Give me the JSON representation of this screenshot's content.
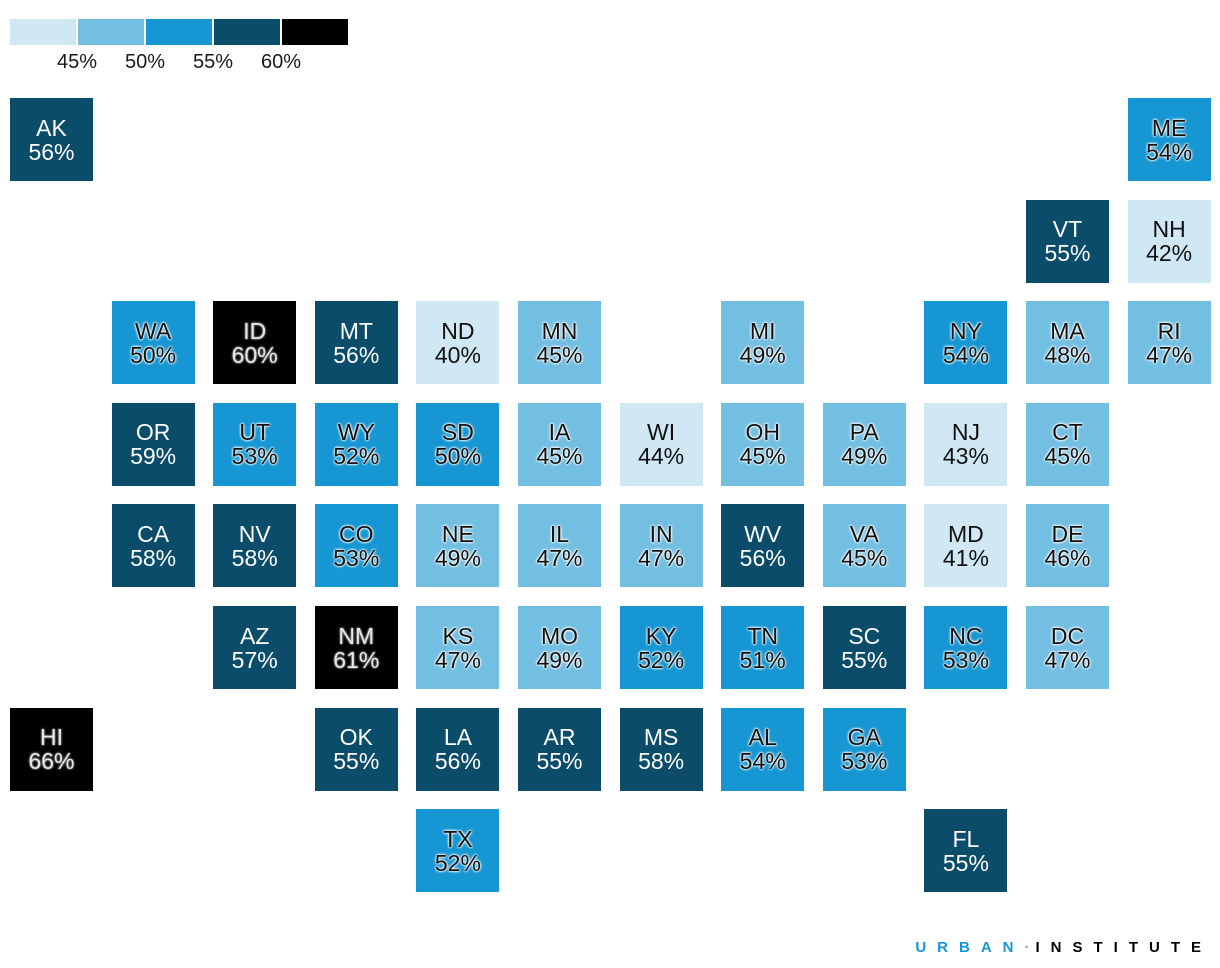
{
  "legend": {
    "colors": [
      "#cfe8f3",
      "#73bfe2",
      "#1696d2",
      "#0a4c6a",
      "#000000"
    ],
    "ticks": [
      "45%",
      "50%",
      "55%",
      "60%"
    ]
  },
  "states": [
    {
      "abbr": "AK",
      "value": "56%",
      "col": 0,
      "row": 0,
      "level": 3
    },
    {
      "abbr": "ME",
      "value": "54%",
      "col": 11,
      "row": 0,
      "level": 2
    },
    {
      "abbr": "VT",
      "value": "55%",
      "col": 10,
      "row": 1,
      "level": 3
    },
    {
      "abbr": "NH",
      "value": "42%",
      "col": 11,
      "row": 1,
      "level": 0
    },
    {
      "abbr": "WA",
      "value": "50%",
      "col": 1,
      "row": 2,
      "level": 2
    },
    {
      "abbr": "ID",
      "value": "60%",
      "col": 2,
      "row": 2,
      "level": 4
    },
    {
      "abbr": "MT",
      "value": "56%",
      "col": 3,
      "row": 2,
      "level": 3
    },
    {
      "abbr": "ND",
      "value": "40%",
      "col": 4,
      "row": 2,
      "level": 0
    },
    {
      "abbr": "MN",
      "value": "45%",
      "col": 5,
      "row": 2,
      "level": 1
    },
    {
      "abbr": "MI",
      "value": "49%",
      "col": 7,
      "row": 2,
      "level": 1
    },
    {
      "abbr": "NY",
      "value": "54%",
      "col": 9,
      "row": 2,
      "level": 2
    },
    {
      "abbr": "MA",
      "value": "48%",
      "col": 10,
      "row": 2,
      "level": 1
    },
    {
      "abbr": "RI",
      "value": "47%",
      "col": 11,
      "row": 2,
      "level": 1
    },
    {
      "abbr": "OR",
      "value": "59%",
      "col": 1,
      "row": 3,
      "level": 3
    },
    {
      "abbr": "UT",
      "value": "53%",
      "col": 2,
      "row": 3,
      "level": 2
    },
    {
      "abbr": "WY",
      "value": "52%",
      "col": 3,
      "row": 3,
      "level": 2
    },
    {
      "abbr": "SD",
      "value": "50%",
      "col": 4,
      "row": 3,
      "level": 2
    },
    {
      "abbr": "IA",
      "value": "45%",
      "col": 5,
      "row": 3,
      "level": 1
    },
    {
      "abbr": "WI",
      "value": "44%",
      "col": 6,
      "row": 3,
      "level": 0
    },
    {
      "abbr": "OH",
      "value": "45%",
      "col": 7,
      "row": 3,
      "level": 1
    },
    {
      "abbr": "PA",
      "value": "49%",
      "col": 8,
      "row": 3,
      "level": 1
    },
    {
      "abbr": "NJ",
      "value": "43%",
      "col": 9,
      "row": 3,
      "level": 0
    },
    {
      "abbr": "CT",
      "value": "45%",
      "col": 10,
      "row": 3,
      "level": 1
    },
    {
      "abbr": "CA",
      "value": "58%",
      "col": 1,
      "row": 4,
      "level": 3
    },
    {
      "abbr": "NV",
      "value": "58%",
      "col": 2,
      "row": 4,
      "level": 3
    },
    {
      "abbr": "CO",
      "value": "53%",
      "col": 3,
      "row": 4,
      "level": 2
    },
    {
      "abbr": "NE",
      "value": "49%",
      "col": 4,
      "row": 4,
      "level": 1
    },
    {
      "abbr": "IL",
      "value": "47%",
      "col": 5,
      "row": 4,
      "level": 1
    },
    {
      "abbr": "IN",
      "value": "47%",
      "col": 6,
      "row": 4,
      "level": 1
    },
    {
      "abbr": "WV",
      "value": "56%",
      "col": 7,
      "row": 4,
      "level": 3
    },
    {
      "abbr": "VA",
      "value": "45%",
      "col": 8,
      "row": 4,
      "level": 1
    },
    {
      "abbr": "MD",
      "value": "41%",
      "col": 9,
      "row": 4,
      "level": 0
    },
    {
      "abbr": "DE",
      "value": "46%",
      "col": 10,
      "row": 4,
      "level": 1
    },
    {
      "abbr": "AZ",
      "value": "57%",
      "col": 2,
      "row": 5,
      "level": 3
    },
    {
      "abbr": "NM",
      "value": "61%",
      "col": 3,
      "row": 5,
      "level": 4
    },
    {
      "abbr": "KS",
      "value": "47%",
      "col": 4,
      "row": 5,
      "level": 1
    },
    {
      "abbr": "MO",
      "value": "49%",
      "col": 5,
      "row": 5,
      "level": 1
    },
    {
      "abbr": "KY",
      "value": "52%",
      "col": 6,
      "row": 5,
      "level": 2
    },
    {
      "abbr": "TN",
      "value": "51%",
      "col": 7,
      "row": 5,
      "level": 2
    },
    {
      "abbr": "SC",
      "value": "55%",
      "col": 8,
      "row": 5,
      "level": 3
    },
    {
      "abbr": "NC",
      "value": "53%",
      "col": 9,
      "row": 5,
      "level": 2
    },
    {
      "abbr": "DC",
      "value": "47%",
      "col": 10,
      "row": 5,
      "level": 1
    },
    {
      "abbr": "HI",
      "value": "66%",
      "col": 0,
      "row": 6,
      "level": 4
    },
    {
      "abbr": "OK",
      "value": "55%",
      "col": 3,
      "row": 6,
      "level": 3
    },
    {
      "abbr": "LA",
      "value": "56%",
      "col": 4,
      "row": 6,
      "level": 3
    },
    {
      "abbr": "AR",
      "value": "55%",
      "col": 5,
      "row": 6,
      "level": 3
    },
    {
      "abbr": "MS",
      "value": "58%",
      "col": 6,
      "row": 6,
      "level": 3
    },
    {
      "abbr": "AL",
      "value": "54%",
      "col": 7,
      "row": 6,
      "level": 2
    },
    {
      "abbr": "GA",
      "value": "53%",
      "col": 8,
      "row": 6,
      "level": 2
    },
    {
      "abbr": "TX",
      "value": "52%",
      "col": 4,
      "row": 7,
      "level": 2
    },
    {
      "abbr": "FL",
      "value": "55%",
      "col": 9,
      "row": 7,
      "level": 3
    }
  ],
  "brand": {
    "part1": "URBAN",
    "separator": "·",
    "part2": "INSTITUTE"
  }
}
